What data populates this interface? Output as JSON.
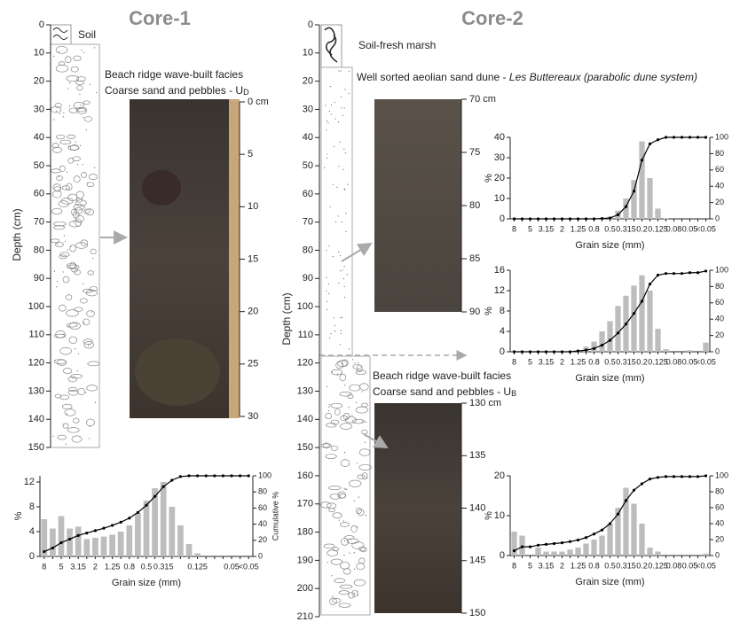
{
  "cores": [
    {
      "title": "Core-1",
      "depth_label": "Depth (cm)",
      "depth_lim": [
        0,
        150
      ],
      "depth_ticks": [
        0,
        10,
        20,
        30,
        40,
        50,
        60,
        70,
        80,
        90,
        100,
        110,
        120,
        130,
        140,
        150
      ],
      "units": [
        {
          "label": "Soil"
        },
        {
          "label": "Beach ridge wave-built facies",
          "text": "Coarse sand and pebbles - U",
          "subscript": "D"
        }
      ],
      "photo_scales": [
        [
          {
            "value": 0,
            "label": "0 cm"
          },
          5,
          10,
          15,
          20,
          25,
          30
        ]
      ]
    },
    {
      "title": "Core-2",
      "depth_label": "Depth (cm)",
      "depth_lim": [
        0,
        210
      ],
      "depth_ticks": [
        0,
        10,
        20,
        30,
        40,
        50,
        60,
        70,
        80,
        90,
        100,
        110,
        120,
        130,
        140,
        150,
        160,
        170,
        180,
        190,
        200,
        210
      ],
      "units": [
        {
          "label": "Soil-fresh marsh"
        },
        {
          "label": "Well sorted aeolian sand dune - ",
          "italic": "Les Buttereaux (parabolic dune system)"
        },
        {
          "label": "Beach ridge wave-built facies",
          "text": "Coarse sand and pebbles - U",
          "subscript": "B"
        }
      ],
      "photo_scales": [
        [
          {
            "value": 70,
            "label": "70 cm"
          },
          75,
          80,
          85,
          90
        ],
        [
          {
            "value": 130,
            "label": "130 cm"
          },
          135,
          140,
          145,
          150
        ]
      ]
    }
  ],
  "chart_data": [
    {
      "type": "bar",
      "x_label": "Grain size (mm)",
      "y_label": "%",
      "y2_label": "Cumulative %",
      "categories": [
        "8",
        null,
        "5",
        null,
        "3.15",
        null,
        "2",
        null,
        "1.25",
        null,
        "0.8",
        null,
        "0.5",
        null,
        "0.315",
        null,
        null,
        null,
        "0.125",
        null,
        null,
        null,
        "0.05",
        null,
        "<0.05"
      ],
      "ylim": [
        0,
        13
      ],
      "yticks": [
        0,
        4,
        8,
        12
      ],
      "y2lim": [
        0,
        100
      ],
      "y2ticks": [
        0,
        20,
        40,
        60,
        80,
        100
      ],
      "series": [
        {
          "color": "#bdbdbd",
          "values": [
            6,
            4.5,
            6.5,
            4.5,
            4.8,
            2.8,
            3,
            3.2,
            3.5,
            4,
            5,
            7,
            9,
            11,
            12,
            8,
            5,
            2,
            0.5,
            0,
            0,
            0,
            0,
            0,
            0
          ]
        },
        {
          "type": "line",
          "axis": "y2",
          "color": "#000000",
          "values": [
            6,
            10.5,
            17,
            21.5,
            26,
            29,
            32,
            35,
            38.5,
            42.5,
            47.5,
            54.5,
            63.5,
            74.5,
            86.5,
            94.5,
            99,
            100,
            100,
            100,
            100,
            100,
            100,
            100,
            100
          ]
        }
      ]
    },
    {
      "type": "bar",
      "x_label": "Grain size (mm)",
      "y_label": "%",
      "categories": [
        "8",
        null,
        "5",
        null,
        "3.15",
        null,
        "2",
        null,
        "1.25",
        null,
        "0.8",
        null,
        "0.5",
        null,
        "0.315",
        null,
        "0.2",
        null,
        "0.125",
        null,
        "0.08",
        null,
        "0.05",
        null,
        "<0.05"
      ],
      "ylim": [
        0,
        40
      ],
      "yticks": [
        0,
        10,
        20,
        30,
        40
      ],
      "y2lim": [
        0,
        100
      ],
      "y2ticks": [
        0,
        20,
        40,
        60,
        80,
        100
      ],
      "series": [
        {
          "color": "#bdbdbd",
          "values": [
            0,
            0,
            0,
            0,
            0,
            0,
            0,
            0,
            0,
            0,
            0,
            0.5,
            1,
            4,
            10,
            19,
            38,
            20,
            5,
            0.3,
            0,
            0,
            0,
            0,
            0
          ]
        },
        {
          "type": "line",
          "axis": "y2",
          "color": "#000000",
          "values": [
            0,
            0,
            0,
            0,
            0,
            0,
            0,
            0,
            0,
            0,
            0,
            0.5,
            1,
            5,
            15,
            34,
            72,
            92,
            97,
            100,
            100,
            100,
            100,
            100,
            100
          ]
        }
      ]
    },
    {
      "type": "bar",
      "x_label": "Grain size (mm)",
      "y_label": "%",
      "categories": [
        "8",
        null,
        "5",
        null,
        "3.15",
        null,
        "2",
        null,
        "1.25",
        null,
        "0.8",
        null,
        "0.5",
        null,
        "0.315",
        null,
        "0.2",
        null,
        "0.125",
        null,
        "0.08",
        null,
        "0.05",
        null,
        "<0.05"
      ],
      "ylim": [
        0,
        16
      ],
      "yticks": [
        0,
        4,
        8,
        12,
        16
      ],
      "y2lim": [
        0,
        100
      ],
      "y2ticks": [
        0,
        20,
        40,
        60,
        80,
        100
      ],
      "series": [
        {
          "color": "#bdbdbd",
          "values": [
            0,
            0,
            0,
            0,
            0,
            0,
            0,
            0,
            0.3,
            1,
            2,
            4,
            6,
            9,
            11,
            13,
            15,
            12,
            4.5,
            0.5,
            0,
            0,
            0.3,
            0,
            1.8
          ]
        },
        {
          "type": "line",
          "axis": "y2",
          "color": "#000000",
          "values": [
            0,
            0,
            0,
            0,
            0,
            0,
            0,
            0,
            1,
            2,
            4,
            8,
            14,
            23,
            34,
            47,
            62,
            83,
            94,
            96,
            96,
            96,
            97,
            97,
            99
          ]
        }
      ]
    },
    {
      "type": "bar",
      "x_label": "Grain size (mm)",
      "y_label": "%",
      "categories": [
        "8",
        null,
        "5",
        null,
        "3.15",
        null,
        "2",
        null,
        "1.25",
        null,
        "0.8",
        null,
        "0.5",
        null,
        "0.315",
        null,
        "0.2",
        null,
        "0.125",
        null,
        "0.08",
        null,
        "0.05",
        null,
        "<0.05"
      ],
      "ylim": [
        0,
        20
      ],
      "yticks": [
        0,
        10,
        20
      ],
      "y2lim": [
        0,
        100
      ],
      "y2ticks": [
        0,
        20,
        40,
        60,
        80,
        100
      ],
      "series": [
        {
          "color": "#bdbdbd",
          "values": [
            6,
            5,
            0,
            2,
            1,
            1,
            1,
            1.5,
            2,
            3,
            4,
            5,
            8,
            12,
            17,
            13,
            8,
            2,
            1,
            0,
            0,
            0,
            0,
            0,
            0.5
          ]
        },
        {
          "type": "line",
          "axis": "y2",
          "color": "#000000",
          "values": [
            6,
            11,
            11,
            13,
            14,
            15,
            16,
            17.5,
            19.5,
            22.5,
            27,
            32,
            40,
            52,
            69,
            82,
            90,
            96,
            98,
            99,
            99,
            99,
            99,
            99,
            100
          ]
        }
      ]
    }
  ]
}
